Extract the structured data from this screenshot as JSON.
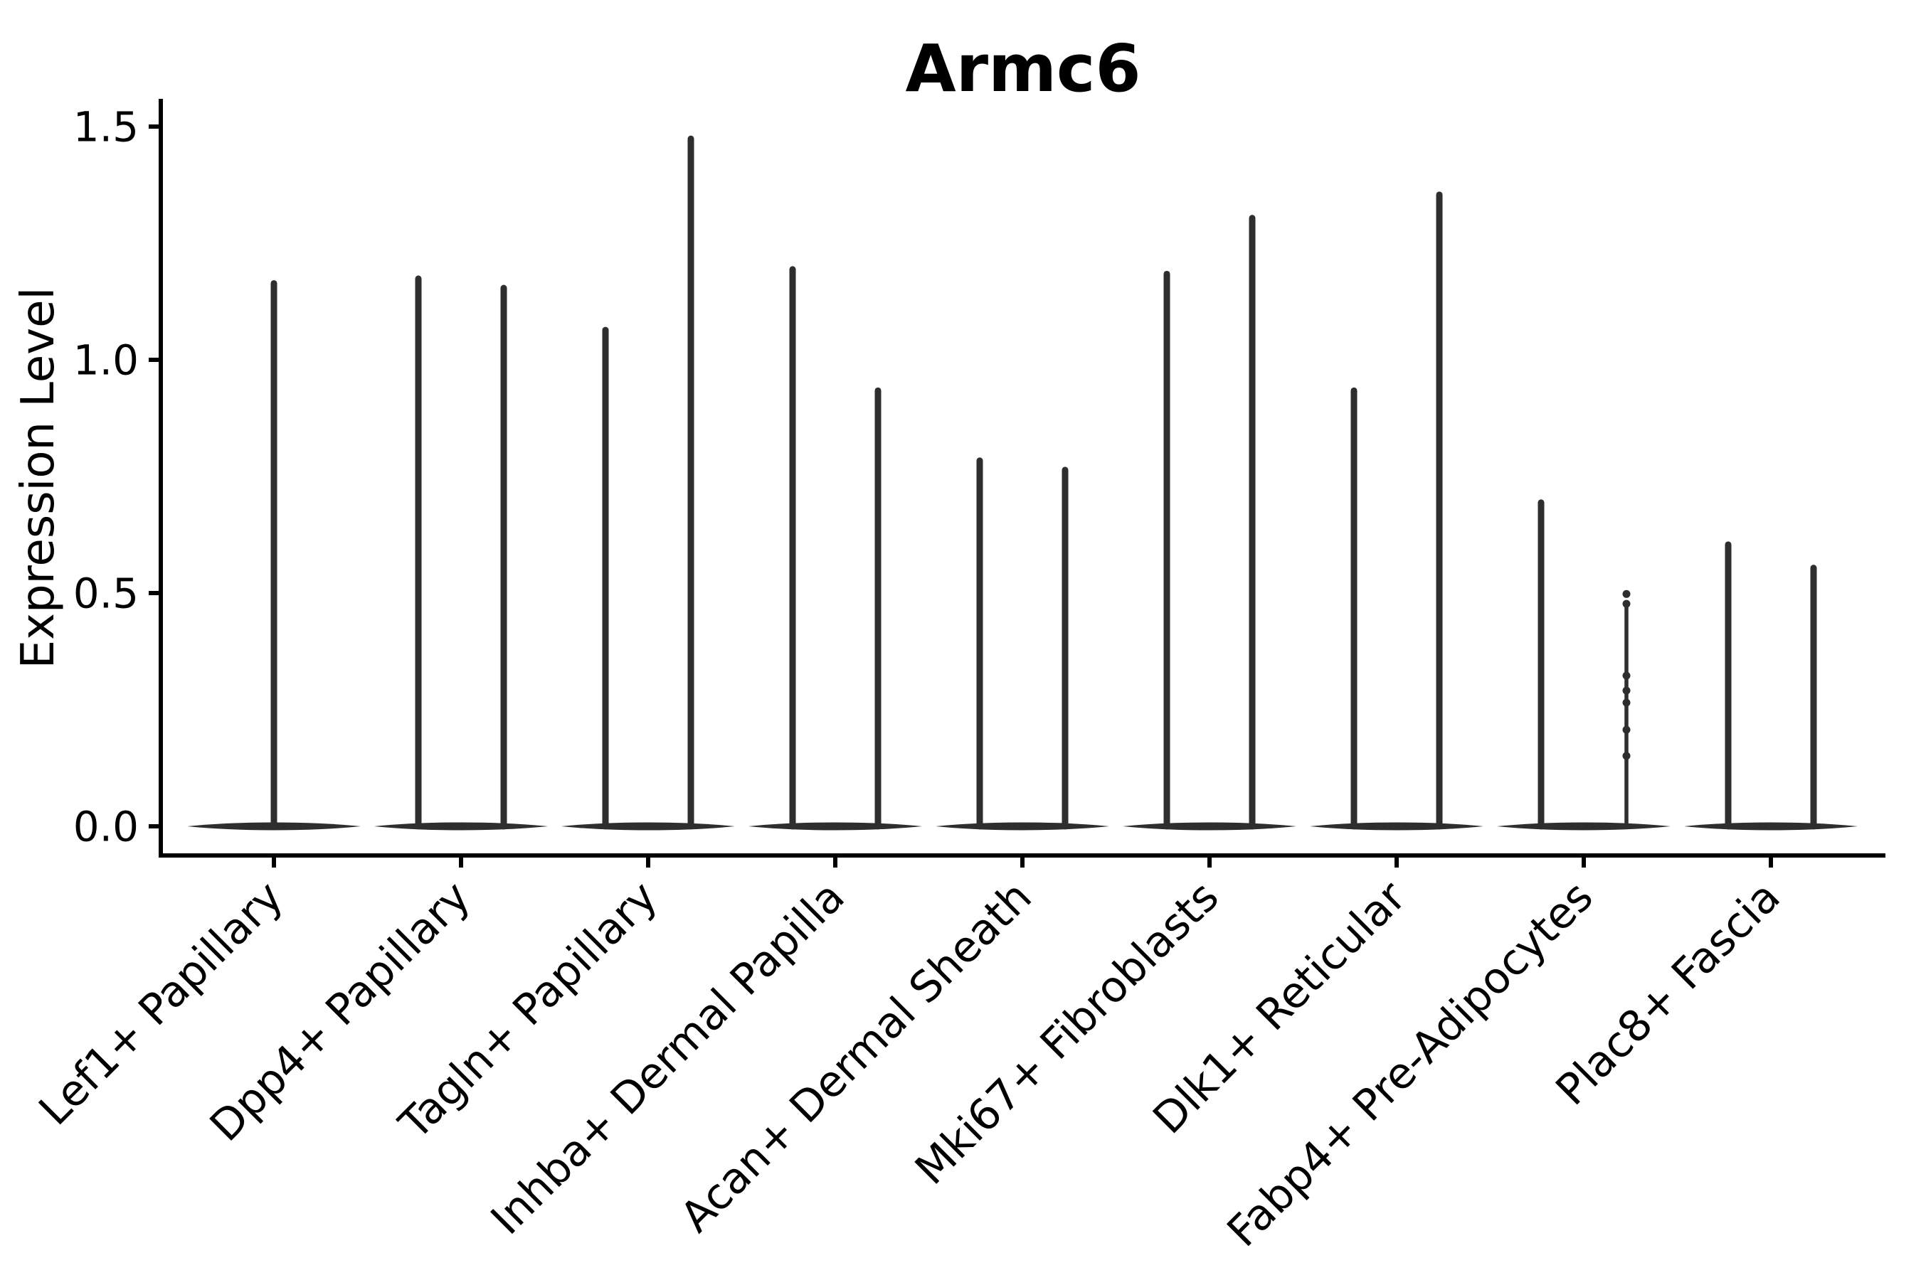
{
  "figure": {
    "background": "#ffffff"
  },
  "chart_data": {
    "type": "violin",
    "title": "Armc6",
    "ylabel": "Expression Level",
    "xlabel": "",
    "grid": false,
    "legend": null,
    "x_rotation_deg": 45,
    "ylim": [
      -0.06,
      1.56
    ],
    "y_ticks": [
      "0.0",
      "0.5",
      "1.0",
      "1.5"
    ],
    "y_tick_values": [
      0.0,
      0.5,
      1.0,
      1.5
    ],
    "colors": {
      "violin": "#2e2e2e",
      "axis": "#000000",
      "text": "#000000"
    },
    "description": "Per cell-type violin distributions of Armc6 expression; each violin is massed at 0 (flat base) with a thin spike rising to its maximum expression value.",
    "categories": [
      {
        "label": "Lef1+ Papillary",
        "violins": [
          {
            "pos": "center",
            "max": 1.17
          }
        ]
      },
      {
        "label": "Dpp4+ Papillary",
        "violins": [
          {
            "pos": "left",
            "max": 1.18
          },
          {
            "pos": "right",
            "max": 1.16
          }
        ]
      },
      {
        "label": "Tagln+ Papillary",
        "violins": [
          {
            "pos": "left",
            "max": 1.07
          },
          {
            "pos": "right",
            "max": 1.48
          }
        ]
      },
      {
        "label": "Inhba+ Dermal Papilla",
        "violins": [
          {
            "pos": "left",
            "max": 1.2
          },
          {
            "pos": "right",
            "max": 0.94
          }
        ]
      },
      {
        "label": "Acan+ Dermal Sheath",
        "violins": [
          {
            "pos": "left",
            "max": 0.79
          },
          {
            "pos": "right",
            "max": 0.77
          }
        ]
      },
      {
        "label": "Mki67+ Fibroblasts",
        "violins": [
          {
            "pos": "left",
            "max": 1.19
          },
          {
            "pos": "right",
            "max": 1.31
          }
        ]
      },
      {
        "label": "Dlk1+ Reticular",
        "violins": [
          {
            "pos": "left",
            "max": 0.94
          },
          {
            "pos": "right",
            "max": 1.36
          }
        ]
      },
      {
        "label": "Fabp4+ Pre-Adipocytes",
        "violins": [
          {
            "pos": "left",
            "max": 0.7
          },
          {
            "pos": "right",
            "max": 0.5,
            "style": "thin-dotted",
            "shaft_top": 0.477,
            "dots": [
              0.498,
              0.477,
              0.323,
              0.291,
              0.265,
              0.207,
              0.151
            ]
          }
        ]
      },
      {
        "label": "Plac8+ Fascia",
        "violins": [
          {
            "pos": "left",
            "max": 0.61
          },
          {
            "pos": "right",
            "max": 0.56
          }
        ]
      }
    ]
  }
}
